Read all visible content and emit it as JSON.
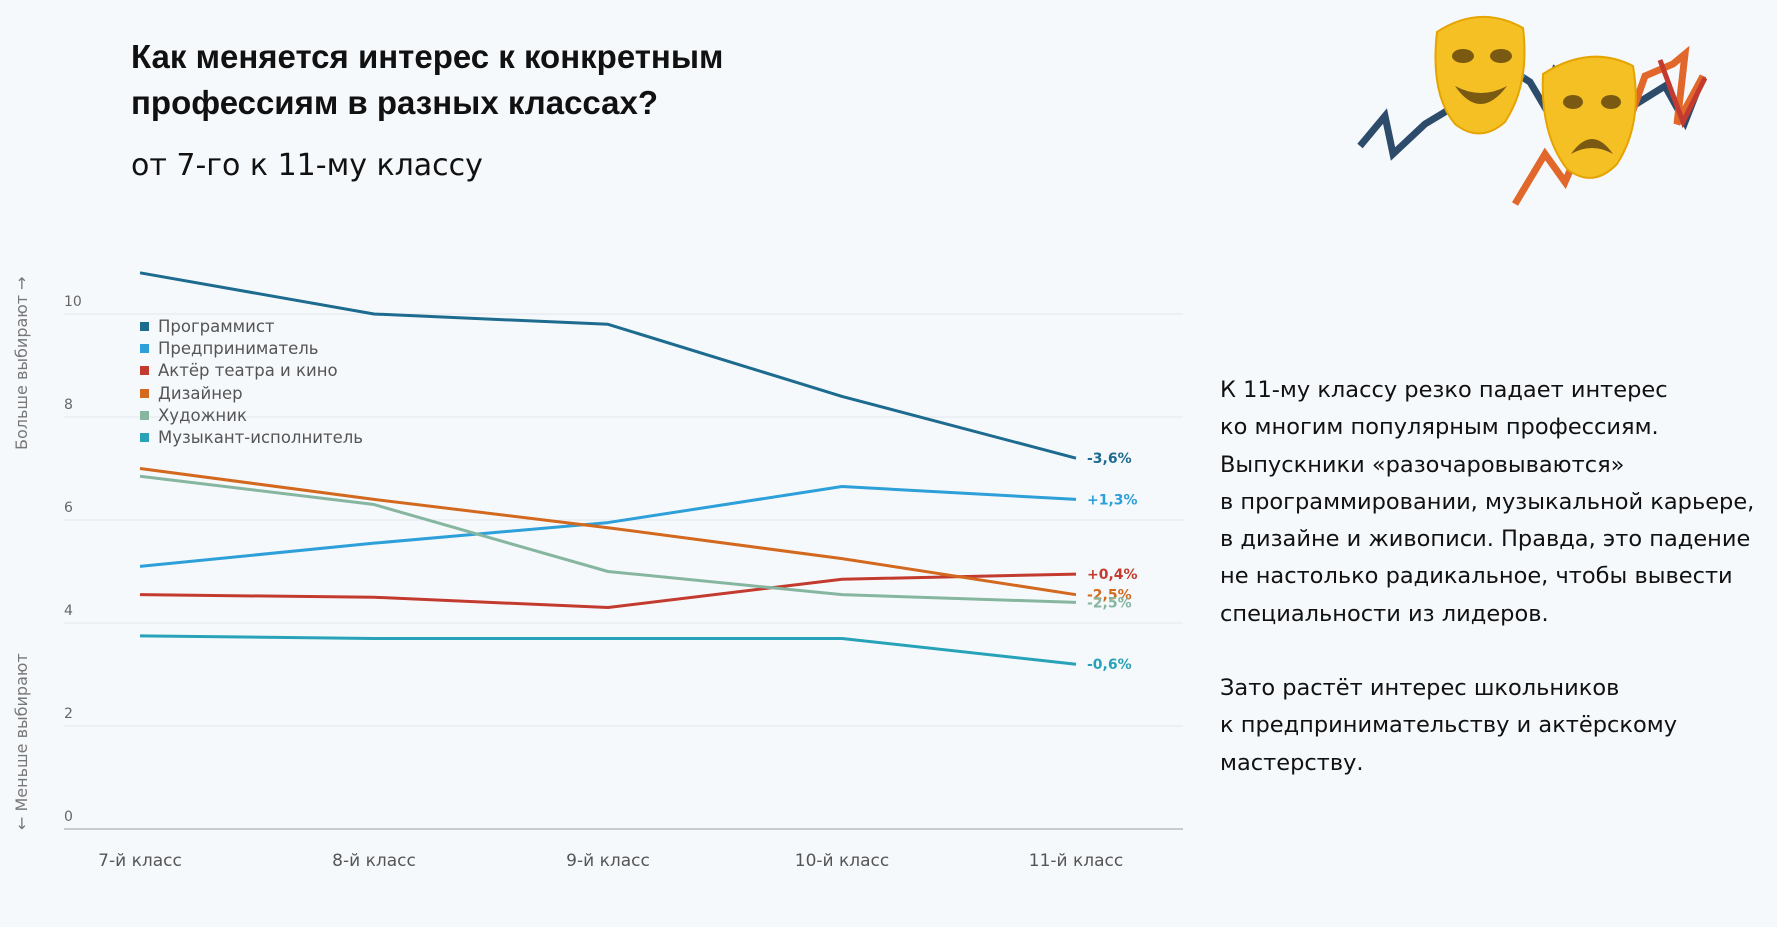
{
  "header": {
    "title": "Как меняется интерес к конкретным профессиям в разных классах?",
    "subtitle": "от 7-го к 11-му классу"
  },
  "side_text": {
    "paragraph1": "К 11-му классу резко падает интерес\nко многим популярным профессиям.\nВыпускники «разочаровываются»\nв программировании, музыкальной карьере,\nв дизайне и живописи. Правда, это падение\nне настолько радикальное, чтобы вывести\nспециальности из лидеров.",
    "paragraph2": "Зато растёт интерес школьников\nк предпринимательству и актёрскому\nмастерству."
  },
  "chart_data": {
    "type": "line",
    "categories": [
      "7-й класс",
      "8-й класс",
      "9-й класс",
      "10-й класс",
      "11-й класс"
    ],
    "ylim": [
      0,
      10.8
    ],
    "yticks": [
      0,
      2,
      4,
      6,
      8,
      10
    ],
    "ylabel_top": "Больше выбирают →",
    "ylabel_bottom": "← Меньше выбирают",
    "grid": true,
    "legend_position": "top-left",
    "series": [
      {
        "name": "Программист",
        "color": "#1d6b8f",
        "values": [
          10.8,
          10.0,
          9.8,
          8.4,
          7.2
        ],
        "change_label": "-3,6%"
      },
      {
        "name": "Предприниматель",
        "color": "#2d9fd9",
        "values": [
          5.1,
          5.55,
          5.95,
          6.65,
          6.4
        ],
        "change_label": "+1,3%"
      },
      {
        "name": "Актёр театра и кино",
        "color": "#c23b2e",
        "values": [
          4.55,
          4.5,
          4.3,
          4.85,
          4.95
        ],
        "change_label": "+0,4%"
      },
      {
        "name": "Дизайнер",
        "color": "#d2691e",
        "values": [
          7.0,
          6.4,
          5.85,
          5.25,
          4.55
        ],
        "change_label": "-2,5%"
      },
      {
        "name": "Художник",
        "color": "#86b6a0",
        "values": [
          6.85,
          6.3,
          5.0,
          4.55,
          4.4
        ],
        "change_label": "-2,5%"
      },
      {
        "name": "Музыкант-исполнитель",
        "color": "#27a2b8",
        "values": [
          3.75,
          3.7,
          3.7,
          3.7,
          3.2
        ],
        "change_label": "-0,6%"
      }
    ]
  }
}
